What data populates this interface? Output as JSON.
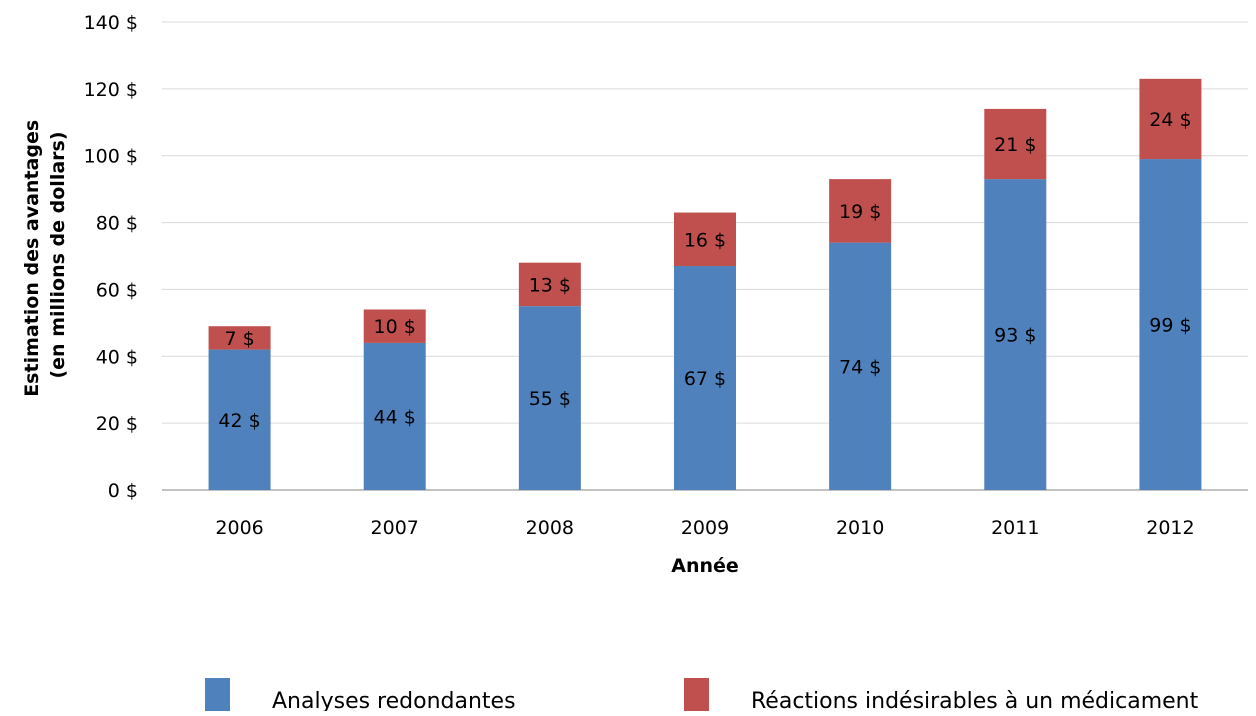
{
  "chart_data": {
    "type": "bar",
    "stacked": true,
    "title": "",
    "xlabel": "Année",
    "ylabel_lines": [
      "Estimation des avantages",
      "(en millions de dollars)"
    ],
    "ylim": [
      0,
      140
    ],
    "yticks": [
      0,
      20,
      40,
      60,
      80,
      100,
      120,
      140
    ],
    "ytick_labels": [
      "0 $",
      "20 $",
      "40 $",
      "60 $",
      "80 $",
      "100 $",
      "120 $",
      "140 $"
    ],
    "categories": [
      "2006",
      "2007",
      "2008",
      "2009",
      "2010",
      "2011",
      "2012"
    ],
    "series": [
      {
        "name": "Analyses redondantes",
        "color": "#4f81bd",
        "values": [
          42,
          44,
          55,
          67,
          74,
          93,
          99
        ],
        "labels": [
          "42 $",
          "44 $",
          "55 $",
          "67 $",
          "74 $",
          "93 $",
          "99 $"
        ]
      },
      {
        "name": "Réactions indésirables à un médicament",
        "color": "#c0504d",
        "values": [
          7,
          10,
          13,
          16,
          19,
          21,
          24
        ],
        "labels": [
          "7 $",
          "10 $",
          "13 $",
          "16 $",
          "19 $",
          "21 $",
          "24 $"
        ]
      }
    ],
    "grid": true,
    "legend_position": "bottom"
  }
}
